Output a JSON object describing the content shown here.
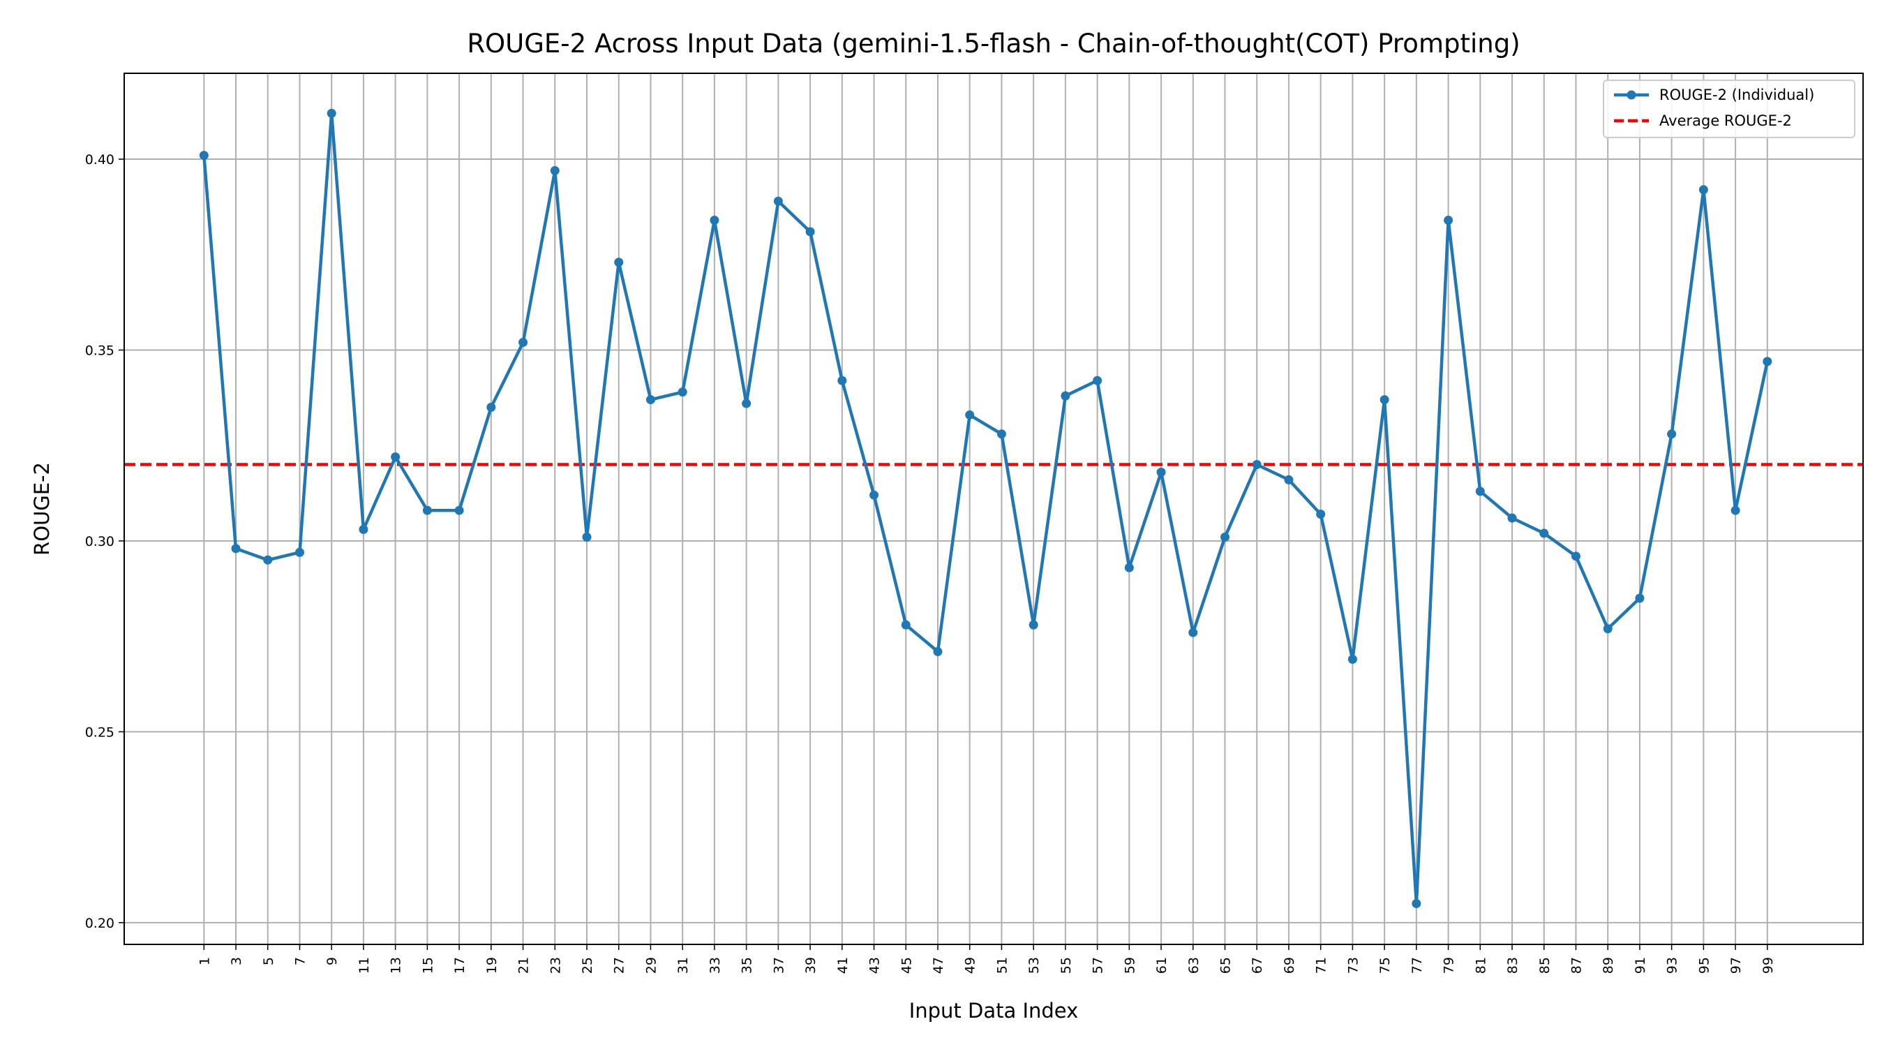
{
  "chart_data": {
    "type": "line",
    "title": "ROUGE-2 Across Input Data (gemini-1.5-flash - Chain-of-thought(COT) Prompting)",
    "xlabel": "Input Data Index",
    "ylabel": "ROUGE-2",
    "x": [
      1,
      3,
      5,
      7,
      9,
      11,
      13,
      15,
      17,
      19,
      21,
      23,
      25,
      27,
      29,
      31,
      33,
      35,
      37,
      39,
      41,
      43,
      45,
      47,
      49,
      51,
      53,
      55,
      57,
      59,
      61,
      63,
      65,
      67,
      69,
      71,
      73,
      75,
      77,
      79,
      81,
      83,
      85,
      87,
      89,
      91,
      93,
      95,
      97,
      99
    ],
    "xticks": [
      "1",
      "3",
      "5",
      "7",
      "9",
      "11",
      "13",
      "15",
      "17",
      "19",
      "21",
      "23",
      "25",
      "27",
      "29",
      "31",
      "33",
      "35",
      "37",
      "39",
      "41",
      "43",
      "45",
      "47",
      "49",
      "51",
      "53",
      "55",
      "57",
      "59",
      "61",
      "63",
      "65",
      "67",
      "69",
      "71",
      "73",
      "75",
      "77",
      "79",
      "81",
      "83",
      "85",
      "87",
      "89",
      "91",
      "93",
      "95",
      "97",
      "99"
    ],
    "yticks": [
      "0.20",
      "0.25",
      "0.30",
      "0.35",
      "0.40"
    ],
    "ytick_values": [
      0.2,
      0.25,
      0.3,
      0.35,
      0.4
    ],
    "xlim": [
      -4,
      105
    ],
    "ylim": [
      0.1943,
      0.4225
    ],
    "grid": true,
    "legend_position": "top-right",
    "series": [
      {
        "name": "ROUGE-2 (Individual)",
        "color": "#1f77b4",
        "style": "solid-with-markers",
        "values": [
          0.401,
          0.298,
          0.295,
          0.297,
          0.412,
          0.303,
          0.322,
          0.308,
          0.308,
          0.335,
          0.352,
          0.397,
          0.301,
          0.373,
          0.337,
          0.339,
          0.384,
          0.336,
          0.389,
          0.381,
          0.342,
          0.312,
          0.278,
          0.271,
          0.333,
          0.328,
          0.278,
          0.338,
          0.342,
          0.293,
          0.318,
          0.276,
          0.301,
          0.32,
          0.316,
          0.307,
          0.269,
          0.337,
          0.205,
          0.384,
          0.313,
          0.306,
          0.302,
          0.296,
          0.277,
          0.285,
          0.328,
          0.392,
          0.308,
          0.347
        ]
      },
      {
        "name": "Average ROUGE-2",
        "color": "#ff0000",
        "style": "dashed",
        "value": 0.32
      }
    ]
  }
}
